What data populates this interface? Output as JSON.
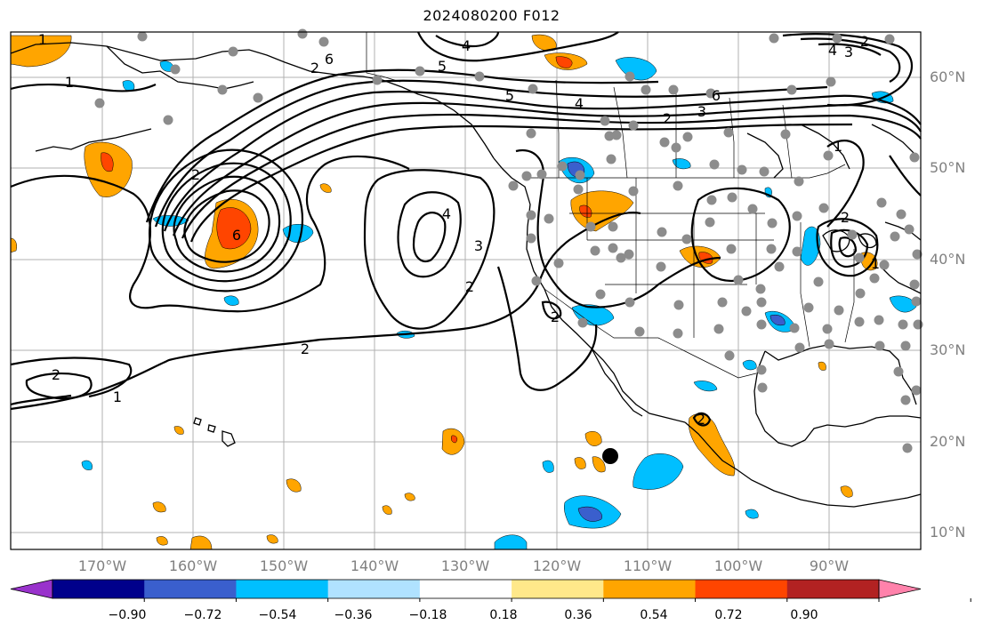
{
  "title": "2024080200 F012",
  "lat_labels": [
    "60°N",
    "50°N",
    "40°N",
    "30°N",
    "20°N",
    "10°N"
  ],
  "lon_labels": [
    "170°W",
    "160°W",
    "150°W",
    "140°W",
    "130°W",
    "120°W",
    "110°W",
    "100°W",
    "90°W"
  ],
  "contour_labels": [
    "1",
    "4",
    "6",
    "5",
    "1",
    "2",
    "5",
    "4",
    "6",
    "2",
    "3",
    "2",
    "4",
    "6",
    "3",
    "2",
    "1",
    "2",
    "2",
    "1",
    "2",
    "1",
    "2",
    "2",
    "4",
    "3",
    "2"
  ],
  "colorbar": {
    "ticks": [
      "−0.90",
      "−0.72",
      "−0.54",
      "−0.36",
      "−0.18",
      "0.18",
      "0.36",
      "0.54",
      "0.72",
      "0.90"
    ],
    "colors": [
      "#9932cc",
      "#00008b",
      "#3a5fcd",
      "#00bfff",
      "#b0e2ff",
      "#ffffff",
      "#ffe88a",
      "#ffa500",
      "#ff4500",
      "#b22222",
      "#ff82ab"
    ]
  },
  "palette": {
    "land_line": "#000000",
    "grid": "#b0b0b0",
    "station_dot": "#8c8c8c",
    "contour": "#000000"
  }
}
